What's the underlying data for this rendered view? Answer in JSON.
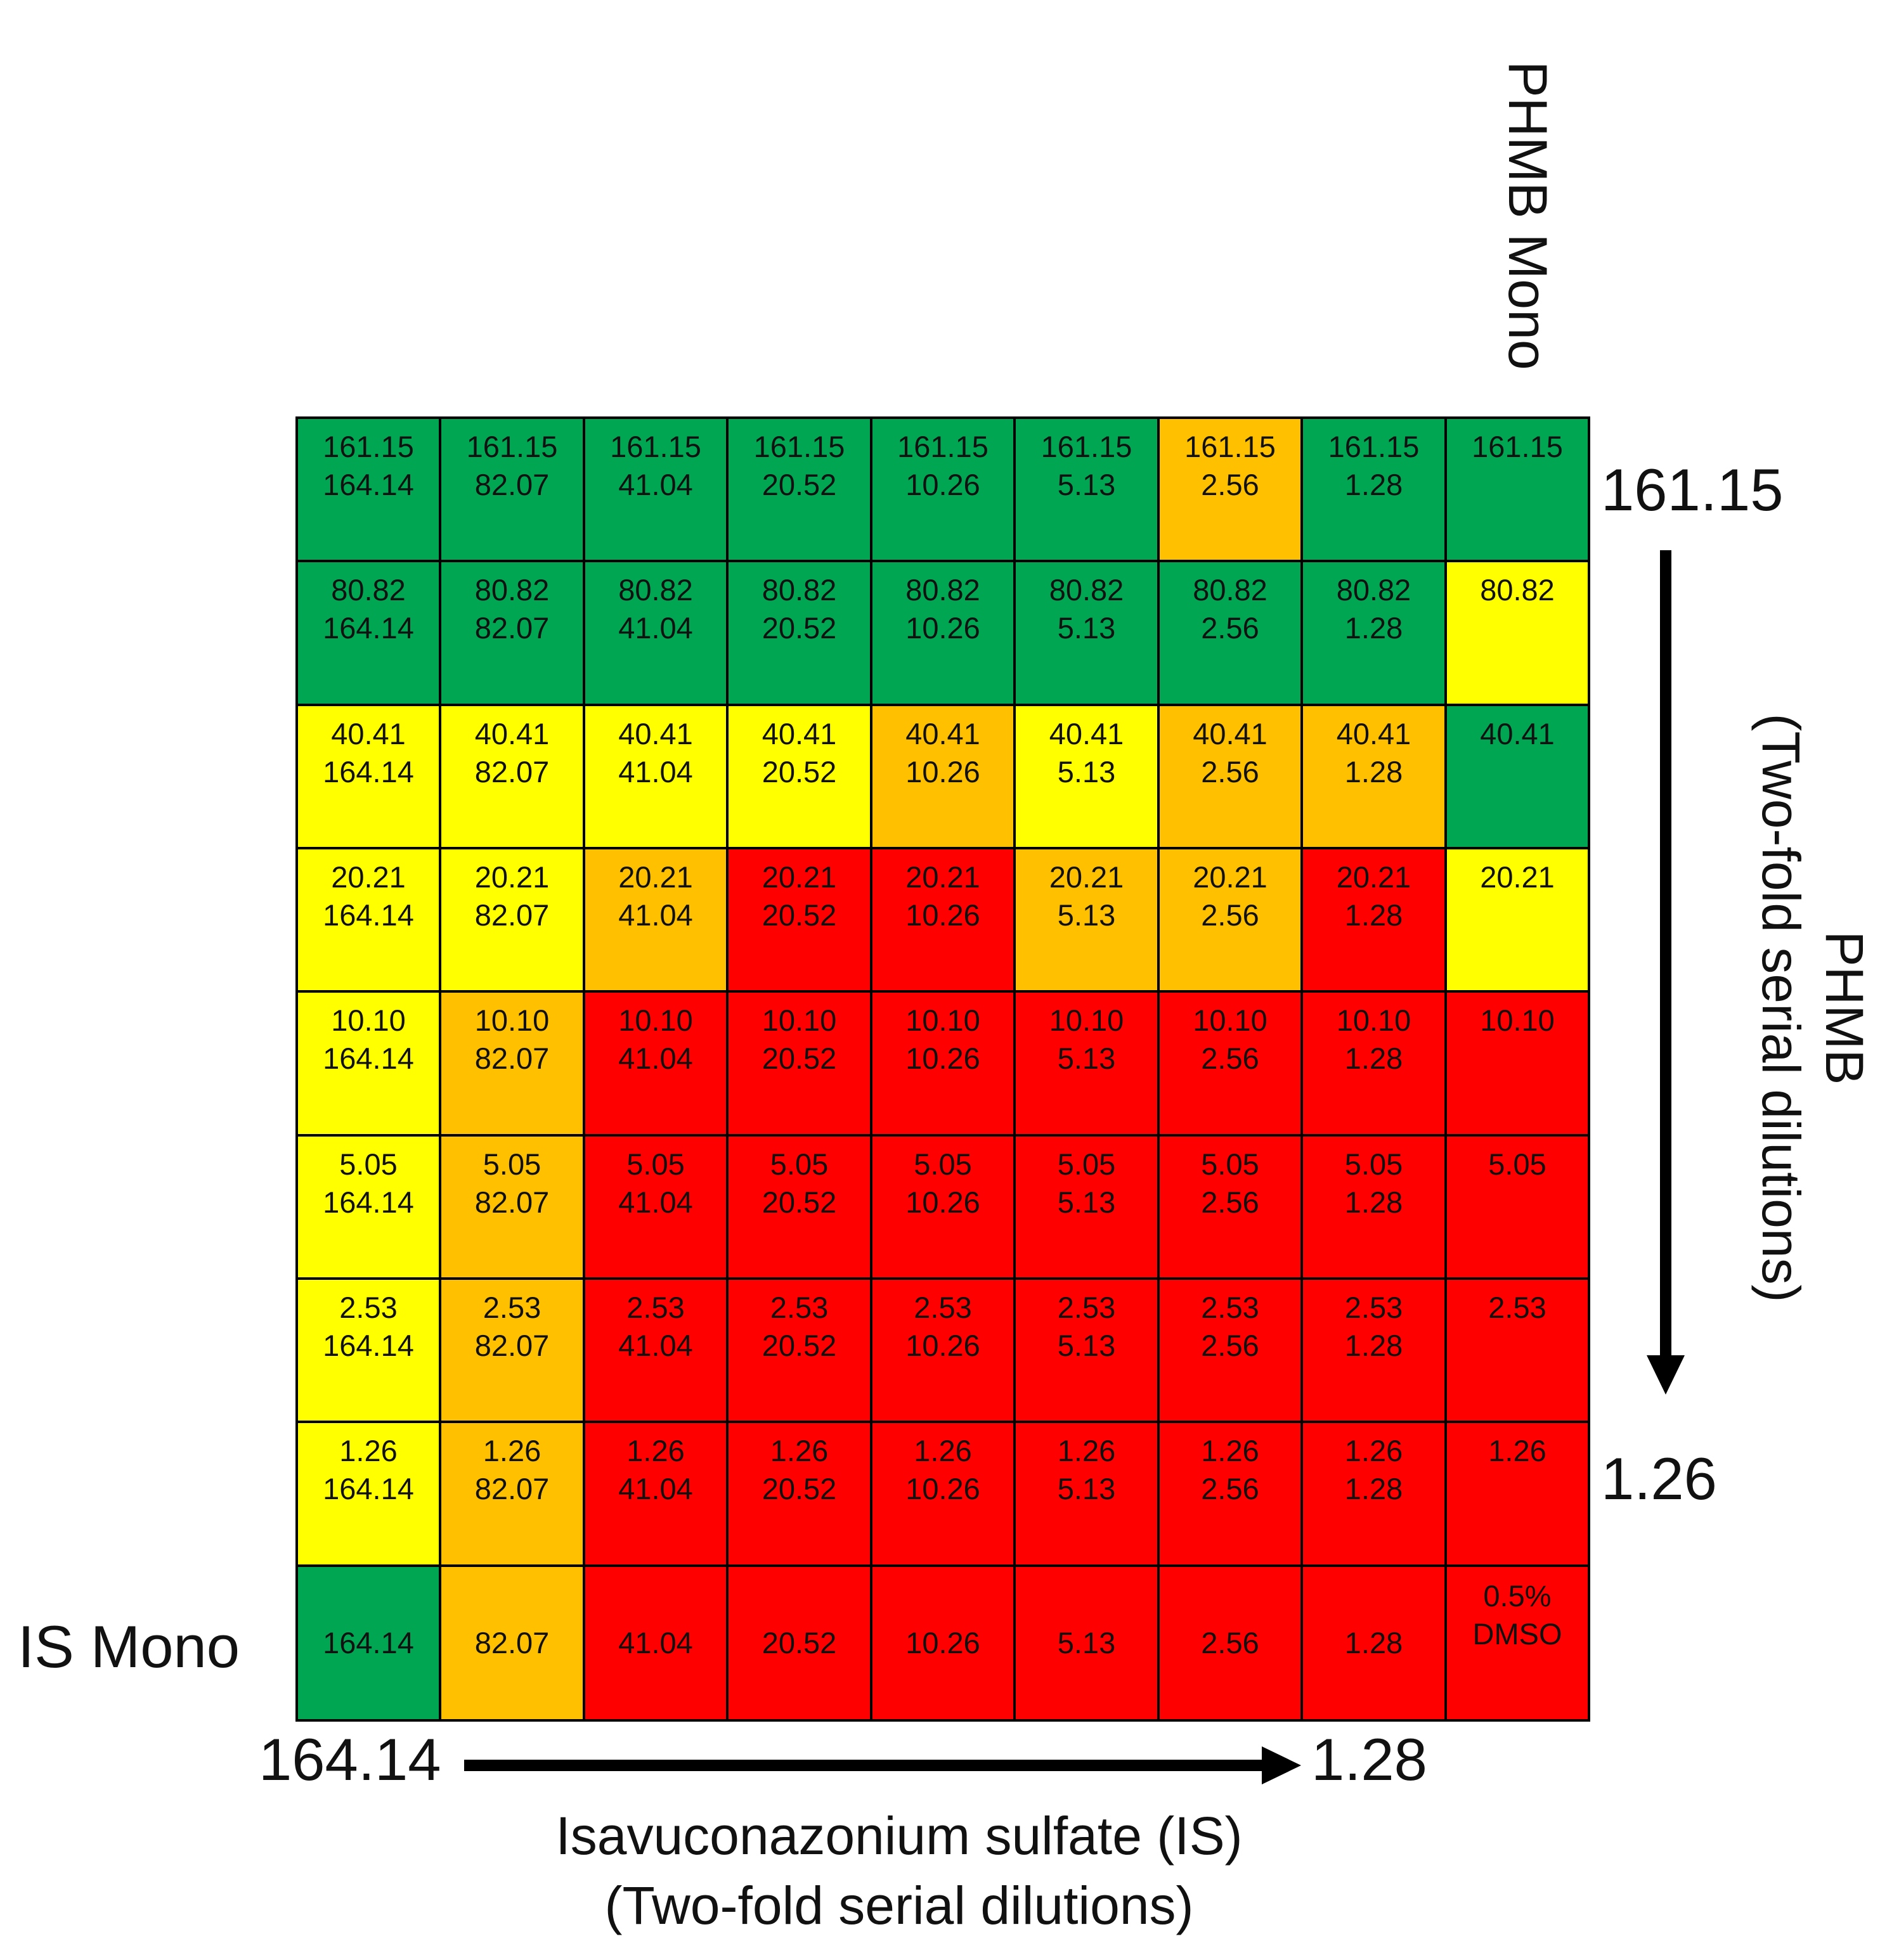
{
  "chart_data": {
    "type": "heatmap",
    "title": "",
    "colors": {
      "green": "#00A651",
      "yellow": "#FFFF00",
      "orange": "#FFC000",
      "red": "#FF0000",
      "grid": "#000000"
    },
    "x_axis": {
      "label_line1": "Isavuconazonium sulfate (IS)",
      "label_line2": "(Two-fold serial dilutions)",
      "start": "164.14",
      "end": "1.28",
      "values": [
        "164.14",
        "82.07",
        "41.04",
        "20.52",
        "10.26",
        "5.13",
        "2.56",
        "1.28"
      ]
    },
    "y_axis": {
      "label_line1": "PHMB",
      "label_line2": "(Two-fold serial dilutions)",
      "start": "161.15",
      "end": "1.26",
      "values": [
        "161.15",
        "80.82",
        "40.41",
        "20.21",
        "10.10",
        "5.05",
        "2.53",
        "1.26"
      ]
    },
    "mono_labels": {
      "phmb": "PHMB Mono",
      "is": "IS Mono"
    },
    "control_label": [
      "0.5%",
      "DMSO"
    ],
    "cell_colors": [
      [
        "green",
        "green",
        "green",
        "green",
        "green",
        "green",
        "orange",
        "green",
        "green"
      ],
      [
        "green",
        "green",
        "green",
        "green",
        "green",
        "green",
        "green",
        "green",
        "yellow"
      ],
      [
        "yellow",
        "yellow",
        "yellow",
        "yellow",
        "orange",
        "yellow",
        "orange",
        "orange",
        "green"
      ],
      [
        "yellow",
        "yellow",
        "orange",
        "red",
        "red",
        "orange",
        "orange",
        "red",
        "yellow"
      ],
      [
        "yellow",
        "orange",
        "red",
        "red",
        "red",
        "red",
        "red",
        "red",
        "red"
      ],
      [
        "yellow",
        "orange",
        "red",
        "red",
        "red",
        "red",
        "red",
        "red",
        "red"
      ],
      [
        "yellow",
        "orange",
        "red",
        "red",
        "red",
        "red",
        "red",
        "red",
        "red"
      ],
      [
        "yellow",
        "orange",
        "red",
        "red",
        "red",
        "red",
        "red",
        "red",
        "red"
      ],
      [
        "green",
        "orange",
        "red",
        "red",
        "red",
        "red",
        "red",
        "red",
        "red"
      ]
    ]
  }
}
